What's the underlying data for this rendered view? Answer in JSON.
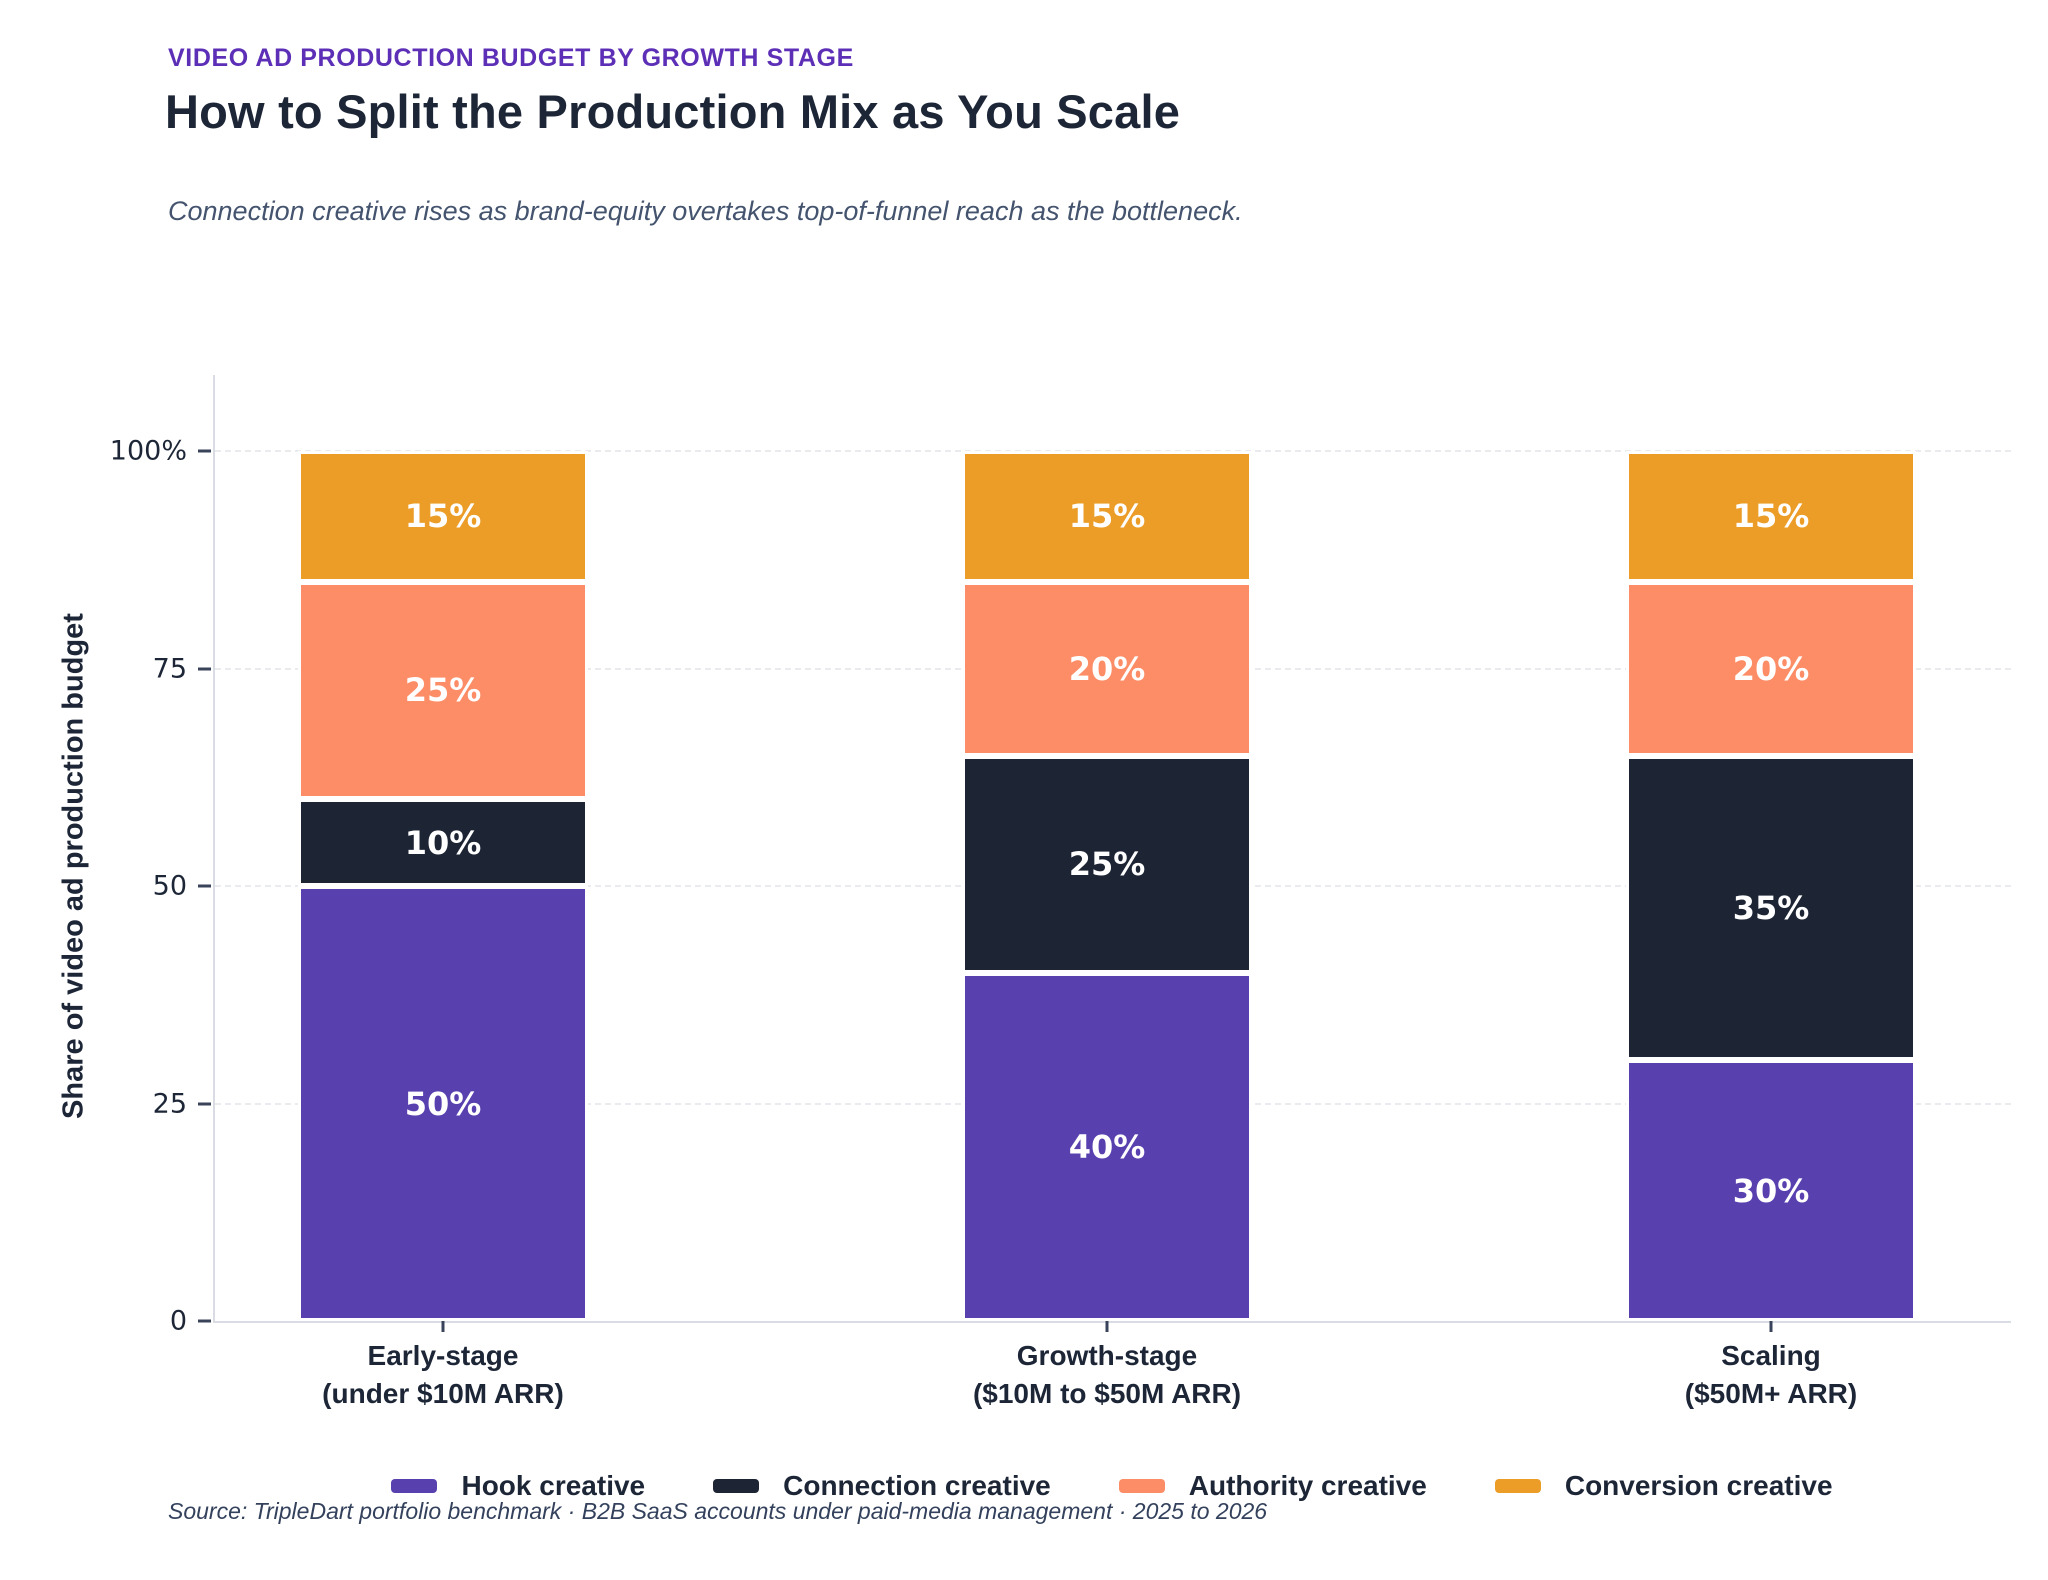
{
  "header": {
    "eyebrow": "VIDEO AD PRODUCTION BUDGET BY GROWTH STAGE",
    "title": "How to Split the Production Mix as You Scale",
    "subtitle": "Connection creative rises as brand-equity overtakes top-of-funnel reach as the bottleneck."
  },
  "chart_data": {
    "type": "bar",
    "stacked": true,
    "title": "How to Split the Production Mix as You Scale",
    "categories": [
      {
        "line1": "Early-stage",
        "line2": "(under $10M ARR)"
      },
      {
        "line1": "Growth-stage",
        "line2": "($10M to $50M ARR)"
      },
      {
        "line1": "Scaling",
        "line2": "($50M+ ARR)"
      }
    ],
    "series": [
      {
        "name": "Hook creative",
        "color": "#5840af",
        "values": [
          50,
          40,
          30
        ]
      },
      {
        "name": "Connection creative",
        "color": "#1d2434",
        "values": [
          10,
          25,
          35
        ]
      },
      {
        "name": "Authority creative",
        "color": "#fd8d67",
        "values": [
          25,
          20,
          20
        ]
      },
      {
        "name": "Conversion creative",
        "color": "#eb9d28",
        "values": [
          15,
          15,
          15
        ]
      }
    ],
    "ylabel": "Share of video ad production budget",
    "yticks": [
      {
        "value": 0,
        "label": "0"
      },
      {
        "value": 25,
        "label": "25"
      },
      {
        "value": 50,
        "label": "50"
      },
      {
        "value": 75,
        "label": "75"
      },
      {
        "value": 100,
        "label": "100%"
      }
    ],
    "ylim": [
      0,
      100
    ],
    "grid": true,
    "legend_position": "bottom",
    "value_suffix": "%"
  },
  "source": "Source: TripleDart portfolio benchmark · B2B SaaS accounts under paid-media management · 2025 to 2026"
}
